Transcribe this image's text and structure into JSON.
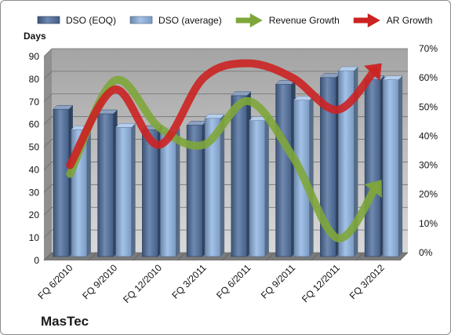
{
  "chart_data": {
    "type": "bar",
    "ylabel": "Days",
    "ylim": [
      0,
      90
    ],
    "y2lim": [
      0,
      0.7
    ],
    "yticks": [
      "0",
      "10",
      "20",
      "30",
      "40",
      "50",
      "60",
      "70",
      "80",
      "90"
    ],
    "y2ticks": [
      "0%",
      "10%",
      "20%",
      "30%",
      "40%",
      "50%",
      "60%",
      "70%"
    ],
    "categories": [
      "FQ 6/2010",
      "FQ 9/2010",
      "FQ 12/2010",
      "FQ 3/2011",
      "FQ 6/2011",
      "FQ 9/2011",
      "FQ 12/2011",
      "FQ 3/2012"
    ],
    "series": [
      {
        "name": "DSO (EOQ)",
        "kind": "bar",
        "axis": "left",
        "color": "#4f6f9f",
        "values": [
          65,
          63,
          56,
          58,
          71,
          76,
          79,
          78
        ]
      },
      {
        "name": "DSO (average)",
        "kind": "bar",
        "axis": "left",
        "color": "#8fb4e3",
        "values": [
          56,
          57,
          55,
          61,
          60,
          69,
          82,
          78
        ]
      },
      {
        "name": "Revenue Growth",
        "kind": "arrow",
        "axis": "right",
        "color": "#7ea63a",
        "values": [
          0.27,
          0.59,
          0.43,
          0.37,
          0.52,
          0.33,
          0.05,
          0.25
        ]
      },
      {
        "name": "AR Growth",
        "kind": "arrow",
        "axis": "right",
        "color": "#cc2222",
        "values": [
          0.3,
          0.56,
          0.37,
          0.6,
          0.65,
          0.6,
          0.49,
          0.65
        ]
      }
    ],
    "grid": true,
    "legend": "top"
  },
  "brand": "MasTec"
}
